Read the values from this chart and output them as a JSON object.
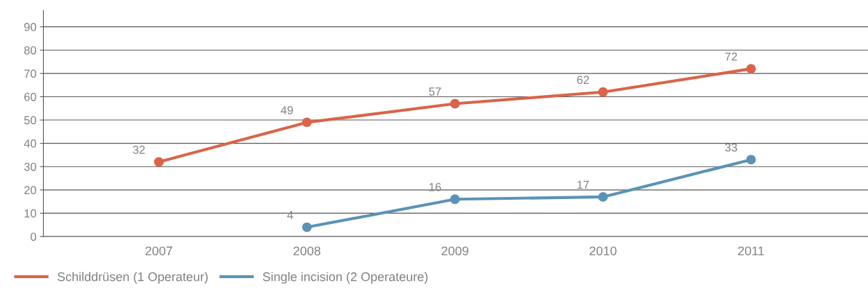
{
  "chart_data": {
    "type": "line",
    "categories": [
      "2007",
      "2008",
      "2009",
      "2010",
      "2011"
    ],
    "series": [
      {
        "name": "Schilddrüsen (1 Operateur)",
        "color": "#d9644a",
        "values": [
          32,
          49,
          57,
          62,
          72
        ]
      },
      {
        "name": "Single incision (2 Operateure)",
        "color": "#5a93b5",
        "values": [
          null,
          4,
          16,
          17,
          33
        ]
      }
    ],
    "ylim": [
      0,
      97
    ],
    "yticks": [
      0,
      10,
      20,
      30,
      40,
      50,
      60,
      70,
      80,
      90
    ],
    "grid": "y",
    "legend": "bottom left",
    "marker": "circle",
    "line_style": "solid",
    "data_labels": true
  }
}
